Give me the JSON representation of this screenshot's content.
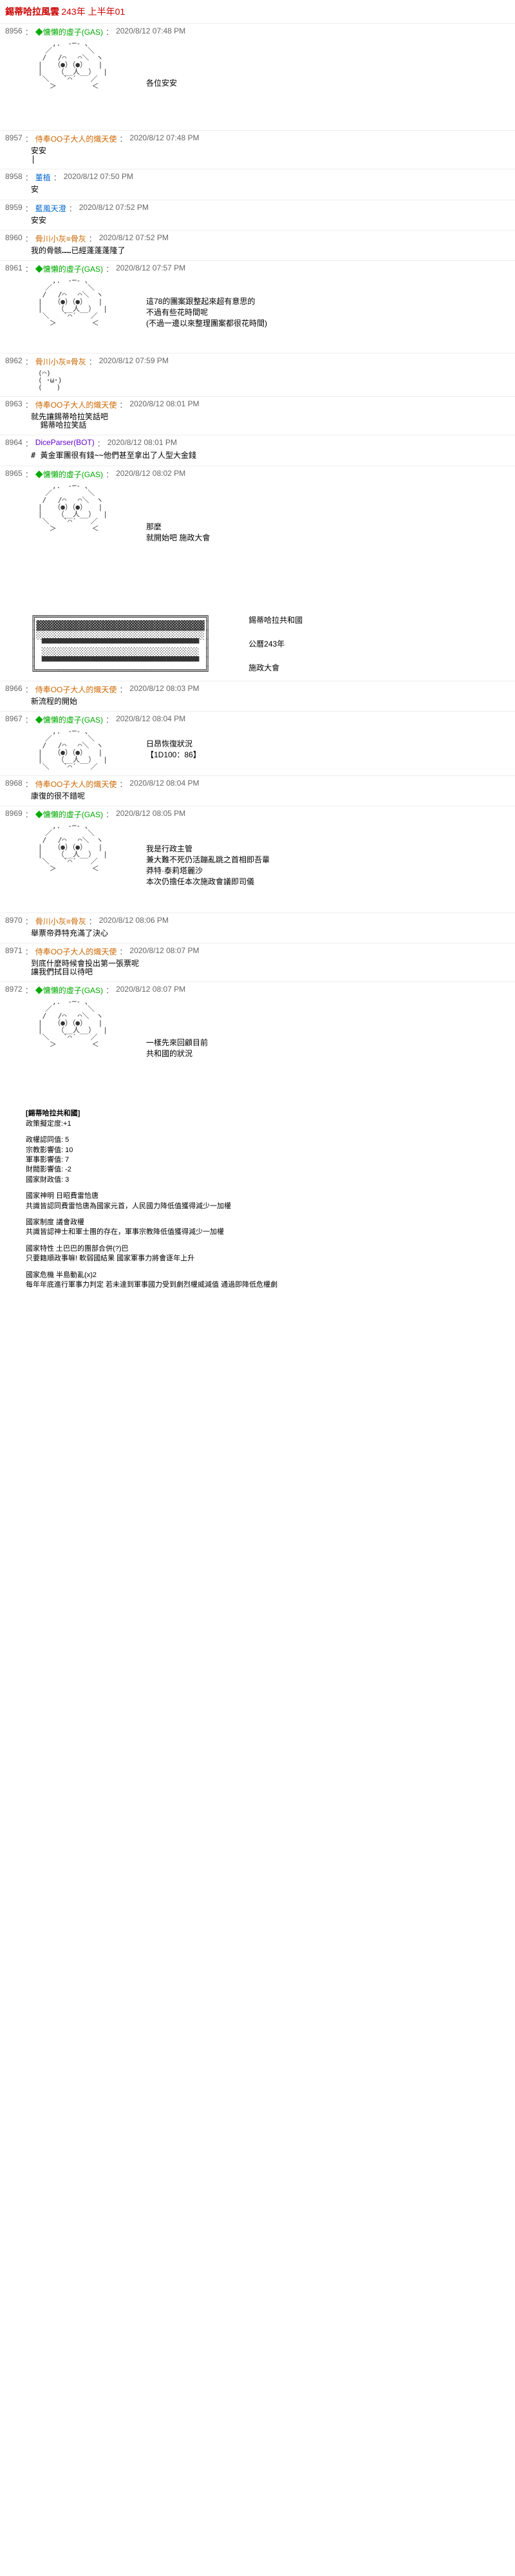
{
  "header": {
    "title": "錫蒂哈拉風雲",
    "subtitle": "243年 上半年01"
  },
  "posts": [
    {
      "num": "8956",
      "user": "◆慵懶的虛子(GAS)",
      "userClass": "user-green",
      "time": "2020/8/12 07:48 PM",
      "body": "",
      "sideText": "各位安安",
      "hasArt": true,
      "artHeight": 12
    },
    {
      "num": "8957",
      "user": "侍奉OO子大人的熾天使",
      "userClass": "user-red",
      "time": "2020/8/12 07:48 PM",
      "body": "安安\n|"
    },
    {
      "num": "8958",
      "user": "董植",
      "userClass": "user-blue",
      "time": "2020/8/12 07:50 PM",
      "body": "安"
    },
    {
      "num": "8959",
      "user": "藍風天澄",
      "userClass": "user-blue",
      "time": "2020/8/12 07:52 PM",
      "body": "安安"
    },
    {
      "num": "8960",
      "user": "骨川小灰≡骨灰",
      "userClass": "user-red",
      "time": "2020/8/12 07:52 PM",
      "body": "我的骨骸……已經蓬蓬蓬隆了"
    },
    {
      "num": "8961",
      "user": "◆慵懶的虛子(GAS)",
      "userClass": "user-green",
      "time": "2020/8/12 07:57 PM",
      "body": "",
      "sideText": "這78的團案跟整起來超有意思的\n不過有些花時間呢\n(不過一邊以來整理團案都很花時間)",
      "hasArt": true,
      "artHeight": 10
    },
    {
      "num": "8962",
      "user": "骨川小灰≡骨灰",
      "userClass": "user-red",
      "time": "2020/8/12 07:59 PM",
      "body": "",
      "hasArt": true,
      "artHeight": 4,
      "artSmall": true
    },
    {
      "num": "8963",
      "user": "侍奉OO子大人的熾天使",
      "userClass": "user-red",
      "time": "2020/8/12 08:01 PM",
      "body": "就先讓錫蒂哈拉笑話吧\n  錫蒂哈拉笑話"
    },
    {
      "num": "8964",
      "user": "DiceParser(BOT)",
      "userClass": "user-purple",
      "time": "2020/8/12 08:01 PM",
      "body": "# 黃金軍團很有錢~~他們甚至拿出了人型大金錢"
    },
    {
      "num": "8965",
      "user": "◆慵懶的虛子(GAS)",
      "userClass": "user-green",
      "time": "2020/8/12 08:02 PM",
      "body": "",
      "sideText": "那麼\n就開始吧 施政大會",
      "hasArt": true,
      "artHeight": 14,
      "hasParliament": true
    },
    {
      "num": "8966",
      "user": "侍奉OO子大人的熾天使",
      "userClass": "user-red",
      "time": "2020/8/12 08:03 PM",
      "body": "新流程的開始"
    },
    {
      "num": "8967",
      "user": "◆慵懶的虛子(GAS)",
      "userClass": "user-green",
      "time": "2020/8/12 08:04 PM",
      "body": "",
      "sideText": "日昂恢復狀況\n【1D100：86】",
      "hasArt": true,
      "artHeight": 6
    },
    {
      "num": "8968",
      "user": "侍奉OO子大人的熾天使",
      "userClass": "user-red",
      "time": "2020/8/12 08:04 PM",
      "body": "康復的很不錯呢"
    },
    {
      "num": "8969",
      "user": "◆慵懶的虛子(GAS)",
      "userClass": "user-green",
      "time": "2020/8/12 08:05 PM",
      "body": "",
      "sideText": "我是行政主管\n兼大難不死仍活蹦亂跳之首相即吾輩\n莽特·泰莉塔麗沙\n本次仍擔任本次施政會議即司儀",
      "hasArt": true,
      "artHeight": 12
    },
    {
      "num": "8970",
      "user": "骨川小灰≡骨灰",
      "userClass": "user-red",
      "time": "2020/8/12 08:06 PM",
      "body": "舉票帝莽特充滿了決心"
    },
    {
      "num": "8971",
      "user": "侍奉OO子大人的熾天使",
      "userClass": "user-red",
      "time": "2020/8/12 08:07 PM",
      "body": "到底什麼時候會投出第一張票呢\n讓我們拭目以待吧"
    },
    {
      "num": "8972",
      "user": "◆慵懶的虛子(GAS)",
      "userClass": "user-green",
      "time": "2020/8/12 08:07 PM",
      "body": "",
      "sideText": "一樣先來回顧目前\n共和國的狀況",
      "hasArt": true,
      "artHeight": 14
    }
  ],
  "parliamentText": {
    "line1": "錫蒂哈拉共和國",
    "line2": "公曆243年",
    "line3": "施政大會"
  },
  "infoBlock": {
    "title": "[錫蒂哈拉共和國]",
    "subtitle": "政策擬定度:+1",
    "stats": [
      "政權認同值: 5",
      "宗教影響值: 10",
      "軍事影響值: 7",
      "財閥影響值: -2",
      "國家財政值: 3"
    ],
    "policies": [
      {
        "title": "國家神明 日昭費雷恰唐",
        "desc": "共識皆認同費雷恰唐為國家元首，人民國力降低值獲得減少一加權"
      },
      {
        "title": "國家制度 議會政權",
        "desc": "共識皆認神士和軍士團的存在，軍事宗教降低值獲得減少一加權"
      },
      {
        "title": "國家特性 土巴巴的團部合併(?)巴",
        "desc": "只要籍順政事嘛! 軟弱國結果 國家軍事力將會逐年上升"
      },
      {
        "title": "國家危機 半島動亂(x)2",
        "desc": "每年年底進行軍事力判定 若未達到軍事國力受到劇烈權威減值 通過即降低危權劇"
      }
    ]
  },
  "asciiFace": "　　　,.　-─- 、\n　　／　　　　　＼ \n　 /　 /⌒　 ⌒＼　ヽ\n　|　 （●）（●） 　|\n　|　 　（__人__）　 |\n　 ＼　　`⌒´　　／\n　　 ＞　　　　　＜",
  "asciiSmall": "　(⌒)\n　( ･ω･)\n　(　　)",
  "asciiParliament": "╔═══════════════════════════════╗\n║▓▓▓▓▓▓▓▓▓▓▓▓▓▓▓▓▓▓▓▓▓▓▓▓▓▓▓▓▓▓▓║\n║░░░░░░░░░░░░░░░░░░░░░░░░░░░░░░░║\n║ ▀▀▀▀▀▀▀▀▀▀▀▀▀▀▀▀▀▀▀▀▀▀▀▀▀▀▀▀▀ ║\n║ ░░░░░░░░░░░░░░░░░░░░░░░░░░░░░ ║\n║ ▀▀▀▀▀▀▀▀▀▀▀▀▀▀▀▀▀▀▀▀▀▀▀▀▀▀▀▀▀ ║\n╚═══════════════════════════════╝"
}
